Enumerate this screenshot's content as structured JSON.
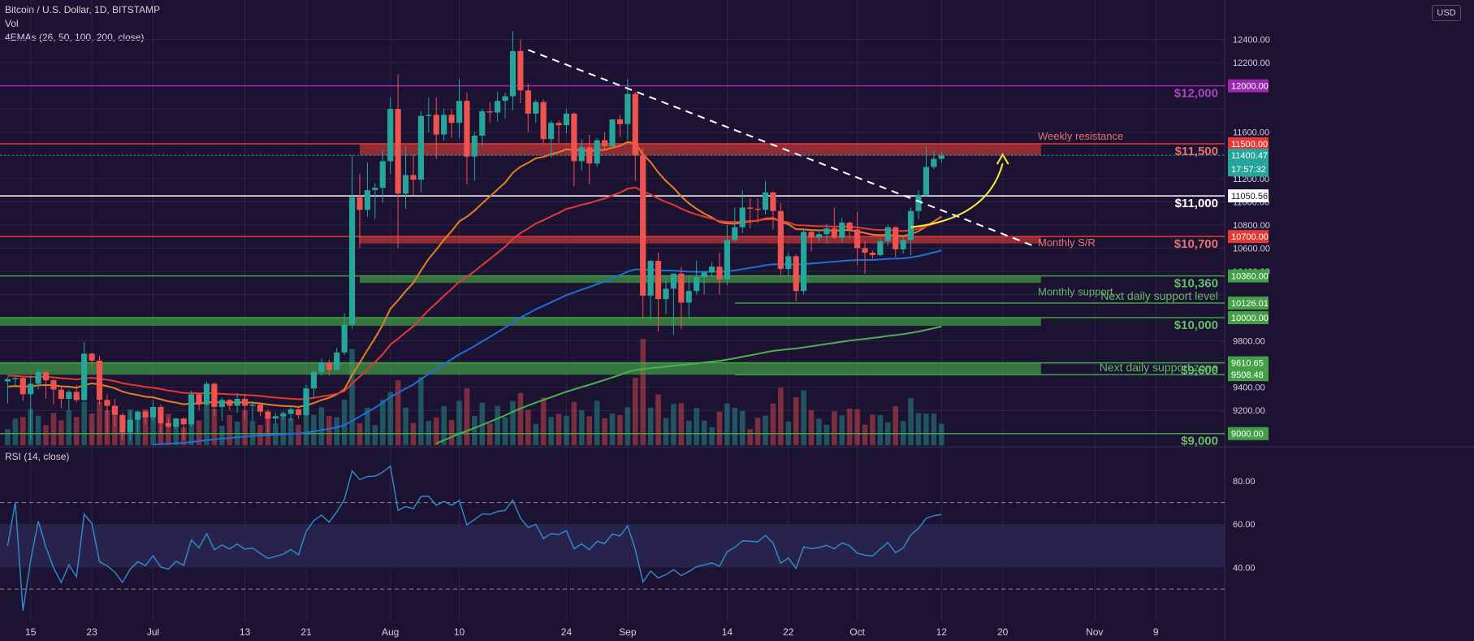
{
  "header": {
    "symbol_line": "Bitcoin / U.S. Dollar, 1D, BITSTAMP",
    "volume_label": "Vol",
    "ema_label": "4EMAs (26, 50, 100, 200, close)",
    "rsi_label": "RSI (14, close)",
    "currency_button": "USD"
  },
  "colors": {
    "background": "#1c1231",
    "grid": "#2e2446",
    "up": "#26a69a",
    "down": "#ef5350",
    "resistance_zone": "#c0393b",
    "support_zone": "#43a047",
    "level_12000": "#9c27b0",
    "ema26": "#e67e22",
    "ema50": "#e53935",
    "ema100": "#1e6fd9",
    "ema200": "#4caf50",
    "rsi": "#2f89c5"
  },
  "chart_data": {
    "type": "candlestick",
    "title": "Bitcoin / U.S. Dollar, 1D, BITSTAMP",
    "y_axis": {
      "min": 8900,
      "max": 12600,
      "ticks": [
        "12400.00",
        "12200.00",
        "11600.00",
        "11200.00",
        "11000.00",
        "10800.00",
        "10600.00",
        "10400.00",
        "9800.00",
        "9400.00",
        "9200.00"
      ]
    },
    "x_axis": {
      "labels": [
        "15",
        "23",
        "Jul",
        "13",
        "21",
        "Aug",
        "10",
        "24",
        "Sep",
        "14",
        "22",
        "Oct",
        "12",
        "20",
        "Nov",
        "9"
      ],
      "dates": [
        "2020-06-15",
        "2020-06-23",
        "2020-07-01",
        "2020-07-13",
        "2020-07-21",
        "2020-08-01",
        "2020-08-10",
        "2020-08-24",
        "2020-09-01",
        "2020-09-14",
        "2020-09-22",
        "2020-10-01",
        "2020-10-12",
        "2020-10-20",
        "2020-11-01",
        "2020-11-09"
      ]
    },
    "candles": [
      {
        "date": "2020-06-12",
        "o": 9450,
        "h": 9490,
        "l": 9260,
        "c": 9470
      },
      {
        "date": "2020-06-13",
        "o": 9470,
        "h": 9500,
        "l": 9400,
        "c": 9480
      },
      {
        "date": "2020-06-14",
        "o": 9480,
        "h": 9490,
        "l": 9280,
        "c": 9340
      },
      {
        "date": "2020-06-15",
        "o": 9340,
        "h": 9500,
        "l": 8950,
        "c": 9430
      },
      {
        "date": "2020-06-16",
        "o": 9430,
        "h": 9560,
        "l": 9380,
        "c": 9530
      },
      {
        "date": "2020-06-17",
        "o": 9530,
        "h": 9550,
        "l": 9300,
        "c": 9460
      },
      {
        "date": "2020-06-18",
        "o": 9460,
        "h": 9470,
        "l": 9250,
        "c": 9380
      },
      {
        "date": "2020-06-19",
        "o": 9380,
        "h": 9400,
        "l": 9220,
        "c": 9300
      },
      {
        "date": "2020-06-20",
        "o": 9300,
        "h": 9380,
        "l": 9200,
        "c": 9360
      },
      {
        "date": "2020-06-21",
        "o": 9360,
        "h": 9420,
        "l": 9270,
        "c": 9290
      },
      {
        "date": "2020-06-22",
        "o": 9290,
        "h": 9790,
        "l": 9280,
        "c": 9690
      },
      {
        "date": "2020-06-23",
        "o": 9690,
        "h": 9700,
        "l": 9570,
        "c": 9630
      },
      {
        "date": "2020-06-24",
        "o": 9630,
        "h": 9670,
        "l": 9250,
        "c": 9290
      },
      {
        "date": "2020-06-25",
        "o": 9290,
        "h": 9340,
        "l": 9000,
        "c": 9240
      },
      {
        "date": "2020-06-26",
        "o": 9240,
        "h": 9300,
        "l": 9050,
        "c": 9160
      },
      {
        "date": "2020-06-27",
        "o": 9160,
        "h": 9180,
        "l": 8950,
        "c": 9010
      },
      {
        "date": "2020-06-28",
        "o": 9010,
        "h": 9190,
        "l": 8940,
        "c": 9120
      },
      {
        "date": "2020-06-29",
        "o": 9120,
        "h": 9200,
        "l": 9000,
        "c": 9190
      },
      {
        "date": "2020-06-30",
        "o": 9190,
        "h": 9200,
        "l": 9080,
        "c": 9140
      },
      {
        "date": "2020-07-01",
        "o": 9140,
        "h": 9290,
        "l": 9110,
        "c": 9230
      },
      {
        "date": "2020-07-02",
        "o": 9230,
        "h": 9250,
        "l": 9000,
        "c": 9090
      },
      {
        "date": "2020-07-03",
        "o": 9090,
        "h": 9130,
        "l": 9050,
        "c": 9060
      },
      {
        "date": "2020-07-04",
        "o": 9060,
        "h": 9140,
        "l": 9040,
        "c": 9130
      },
      {
        "date": "2020-07-05",
        "o": 9130,
        "h": 9140,
        "l": 8950,
        "c": 9080
      },
      {
        "date": "2020-07-06",
        "o": 9080,
        "h": 9370,
        "l": 9060,
        "c": 9340
      },
      {
        "date": "2020-07-07",
        "o": 9340,
        "h": 9350,
        "l": 9200,
        "c": 9250
      },
      {
        "date": "2020-07-08",
        "o": 9250,
        "h": 9450,
        "l": 9240,
        "c": 9430
      },
      {
        "date": "2020-07-09",
        "o": 9430,
        "h": 9440,
        "l": 9150,
        "c": 9230
      },
      {
        "date": "2020-07-10",
        "o": 9230,
        "h": 9310,
        "l": 9110,
        "c": 9290
      },
      {
        "date": "2020-07-11",
        "o": 9290,
        "h": 9300,
        "l": 9200,
        "c": 9240
      },
      {
        "date": "2020-07-12",
        "o": 9240,
        "h": 9350,
        "l": 9180,
        "c": 9300
      },
      {
        "date": "2020-07-13",
        "o": 9300,
        "h": 9340,
        "l": 9130,
        "c": 9240
      },
      {
        "date": "2020-07-14",
        "o": 9240,
        "h": 9280,
        "l": 9110,
        "c": 9250
      },
      {
        "date": "2020-07-15",
        "o": 9250,
        "h": 9270,
        "l": 9150,
        "c": 9190
      },
      {
        "date": "2020-07-16",
        "o": 9190,
        "h": 9210,
        "l": 9000,
        "c": 9130
      },
      {
        "date": "2020-07-17",
        "o": 9130,
        "h": 9180,
        "l": 9080,
        "c": 9150
      },
      {
        "date": "2020-07-18",
        "o": 9150,
        "h": 9190,
        "l": 9120,
        "c": 9170
      },
      {
        "date": "2020-07-19",
        "o": 9170,
        "h": 9240,
        "l": 9110,
        "c": 9210
      },
      {
        "date": "2020-07-20",
        "o": 9210,
        "h": 9220,
        "l": 9130,
        "c": 9160
      },
      {
        "date": "2020-07-21",
        "o": 9160,
        "h": 9420,
        "l": 9150,
        "c": 9390
      },
      {
        "date": "2020-07-22",
        "o": 9390,
        "h": 9540,
        "l": 9300,
        "c": 9530
      },
      {
        "date": "2020-07-23",
        "o": 9530,
        "h": 9650,
        "l": 9500,
        "c": 9610
      },
      {
        "date": "2020-07-24",
        "o": 9610,
        "h": 9640,
        "l": 9500,
        "c": 9550
      },
      {
        "date": "2020-07-25",
        "o": 9550,
        "h": 9740,
        "l": 9540,
        "c": 9700
      },
      {
        "date": "2020-07-26",
        "o": 9700,
        "h": 10040,
        "l": 9680,
        "c": 9940
      },
      {
        "date": "2020-07-27",
        "o": 9940,
        "h": 11400,
        "l": 9900,
        "c": 11040
      },
      {
        "date": "2020-07-28",
        "o": 11040,
        "h": 11240,
        "l": 10600,
        "c": 10930
      },
      {
        "date": "2020-07-29",
        "o": 10930,
        "h": 11340,
        "l": 10870,
        "c": 11100
      },
      {
        "date": "2020-07-30",
        "o": 11100,
        "h": 11160,
        "l": 10850,
        "c": 11120
      },
      {
        "date": "2020-07-31",
        "o": 11120,
        "h": 11450,
        "l": 10990,
        "c": 11350
      },
      {
        "date": "2020-08-01",
        "o": 11350,
        "h": 11900,
        "l": 11240,
        "c": 11800
      },
      {
        "date": "2020-08-02",
        "o": 11800,
        "h": 12100,
        "l": 10600,
        "c": 11070
      },
      {
        "date": "2020-08-03",
        "o": 11070,
        "h": 11480,
        "l": 10940,
        "c": 11230
      },
      {
        "date": "2020-08-04",
        "o": 11230,
        "h": 11410,
        "l": 11060,
        "c": 11190
      },
      {
        "date": "2020-08-05",
        "o": 11190,
        "h": 11780,
        "l": 11080,
        "c": 11740
      },
      {
        "date": "2020-08-06",
        "o": 11740,
        "h": 11900,
        "l": 11600,
        "c": 11750
      },
      {
        "date": "2020-08-07",
        "o": 11750,
        "h": 11900,
        "l": 11370,
        "c": 11580
      },
      {
        "date": "2020-08-08",
        "o": 11580,
        "h": 11800,
        "l": 11530,
        "c": 11750
      },
      {
        "date": "2020-08-09",
        "o": 11750,
        "h": 11800,
        "l": 11550,
        "c": 11680
      },
      {
        "date": "2020-08-10",
        "o": 11680,
        "h": 12060,
        "l": 11550,
        "c": 11870
      },
      {
        "date": "2020-08-11",
        "o": 11870,
        "h": 11940,
        "l": 11150,
        "c": 11390
      },
      {
        "date": "2020-08-12",
        "o": 11390,
        "h": 11600,
        "l": 11180,
        "c": 11570
      },
      {
        "date": "2020-08-13",
        "o": 11570,
        "h": 11800,
        "l": 11480,
        "c": 11780
      },
      {
        "date": "2020-08-14",
        "o": 11780,
        "h": 11860,
        "l": 11680,
        "c": 11770
      },
      {
        "date": "2020-08-15",
        "o": 11770,
        "h": 11950,
        "l": 11690,
        "c": 11870
      },
      {
        "date": "2020-08-16",
        "o": 11870,
        "h": 11940,
        "l": 11720,
        "c": 11910
      },
      {
        "date": "2020-08-17",
        "o": 11910,
        "h": 12470,
        "l": 11790,
        "c": 12300
      },
      {
        "date": "2020-08-18",
        "o": 12300,
        "h": 12400,
        "l": 11850,
        "c": 11960
      },
      {
        "date": "2020-08-19",
        "o": 11960,
        "h": 12020,
        "l": 11600,
        "c": 11760
      },
      {
        "date": "2020-08-20",
        "o": 11760,
        "h": 11880,
        "l": 11680,
        "c": 11860
      },
      {
        "date": "2020-08-21",
        "o": 11860,
        "h": 11880,
        "l": 11500,
        "c": 11540
      },
      {
        "date": "2020-08-22",
        "o": 11540,
        "h": 11700,
        "l": 11380,
        "c": 11680
      },
      {
        "date": "2020-08-23",
        "o": 11680,
        "h": 11700,
        "l": 11510,
        "c": 11660
      },
      {
        "date": "2020-08-24",
        "o": 11660,
        "h": 11800,
        "l": 11590,
        "c": 11760
      },
      {
        "date": "2020-08-25",
        "o": 11760,
        "h": 11770,
        "l": 11130,
        "c": 11350
      },
      {
        "date": "2020-08-26",
        "o": 11350,
        "h": 11540,
        "l": 11270,
        "c": 11470
      },
      {
        "date": "2020-08-27",
        "o": 11470,
        "h": 11580,
        "l": 11150,
        "c": 11330
      },
      {
        "date": "2020-08-28",
        "o": 11330,
        "h": 11550,
        "l": 11300,
        "c": 11530
      },
      {
        "date": "2020-08-29",
        "o": 11530,
        "h": 11600,
        "l": 11450,
        "c": 11480
      },
      {
        "date": "2020-08-30",
        "o": 11480,
        "h": 11700,
        "l": 11470,
        "c": 11710
      },
      {
        "date": "2020-08-31",
        "o": 11710,
        "h": 11750,
        "l": 11560,
        "c": 11670
      },
      {
        "date": "2020-09-01",
        "o": 11670,
        "h": 12060,
        "l": 11530,
        "c": 11930
      },
      {
        "date": "2020-09-02",
        "o": 11930,
        "h": 11950,
        "l": 11180,
        "c": 11400
      },
      {
        "date": "2020-09-03",
        "o": 11400,
        "h": 11470,
        "l": 10000,
        "c": 10190
      },
      {
        "date": "2020-09-04",
        "o": 10190,
        "h": 10500,
        "l": 9980,
        "c": 10490
      },
      {
        "date": "2020-09-05",
        "o": 10490,
        "h": 10560,
        "l": 9880,
        "c": 10160
      },
      {
        "date": "2020-09-06",
        "o": 10160,
        "h": 10350,
        "l": 10030,
        "c": 10250
      },
      {
        "date": "2020-09-07",
        "o": 10250,
        "h": 10380,
        "l": 9850,
        "c": 10380
      },
      {
        "date": "2020-09-08",
        "o": 10380,
        "h": 10440,
        "l": 9900,
        "c": 10130
      },
      {
        "date": "2020-09-09",
        "o": 10130,
        "h": 10350,
        "l": 10010,
        "c": 10230
      },
      {
        "date": "2020-09-10",
        "o": 10230,
        "h": 10490,
        "l": 10200,
        "c": 10350
      },
      {
        "date": "2020-09-11",
        "o": 10350,
        "h": 10400,
        "l": 10200,
        "c": 10390
      },
      {
        "date": "2020-09-12",
        "o": 10390,
        "h": 10480,
        "l": 10350,
        "c": 10440
      },
      {
        "date": "2020-09-13",
        "o": 10440,
        "h": 10560,
        "l": 10200,
        "c": 10330
      },
      {
        "date": "2020-09-14",
        "o": 10330,
        "h": 10800,
        "l": 10280,
        "c": 10670
      },
      {
        "date": "2020-09-15",
        "o": 10670,
        "h": 10950,
        "l": 10660,
        "c": 10780
      },
      {
        "date": "2020-09-16",
        "o": 10780,
        "h": 11100,
        "l": 10730,
        "c": 10950
      },
      {
        "date": "2020-09-17",
        "o": 10950,
        "h": 11030,
        "l": 10770,
        "c": 10940
      },
      {
        "date": "2020-09-18",
        "o": 10940,
        "h": 11030,
        "l": 10820,
        "c": 10930
      },
      {
        "date": "2020-09-19",
        "o": 10930,
        "h": 11180,
        "l": 10890,
        "c": 11080
      },
      {
        "date": "2020-09-20",
        "o": 11080,
        "h": 11090,
        "l": 10760,
        "c": 10920
      },
      {
        "date": "2020-09-21",
        "o": 10920,
        "h": 10990,
        "l": 10370,
        "c": 10420
      },
      {
        "date": "2020-09-22",
        "o": 10420,
        "h": 10560,
        "l": 10360,
        "c": 10530
      },
      {
        "date": "2020-09-23",
        "o": 10530,
        "h": 10550,
        "l": 10140,
        "c": 10230
      },
      {
        "date": "2020-09-24",
        "o": 10230,
        "h": 10760,
        "l": 10200,
        "c": 10740
      },
      {
        "date": "2020-09-25",
        "o": 10740,
        "h": 10750,
        "l": 10570,
        "c": 10690
      },
      {
        "date": "2020-09-26",
        "o": 10690,
        "h": 10760,
        "l": 10660,
        "c": 10720
      },
      {
        "date": "2020-09-27",
        "o": 10720,
        "h": 10810,
        "l": 10640,
        "c": 10770
      },
      {
        "date": "2020-09-28",
        "o": 10770,
        "h": 10950,
        "l": 10680,
        "c": 10690
      },
      {
        "date": "2020-09-29",
        "o": 10690,
        "h": 10860,
        "l": 10650,
        "c": 10820
      },
      {
        "date": "2020-09-30",
        "o": 10820,
        "h": 10830,
        "l": 10680,
        "c": 10760
      },
      {
        "date": "2020-10-01",
        "o": 10760,
        "h": 10910,
        "l": 10450,
        "c": 10600
      },
      {
        "date": "2020-10-02",
        "o": 10600,
        "h": 10660,
        "l": 10380,
        "c": 10560
      },
      {
        "date": "2020-10-03",
        "o": 10560,
        "h": 10580,
        "l": 10510,
        "c": 10540
      },
      {
        "date": "2020-10-04",
        "o": 10540,
        "h": 10690,
        "l": 10530,
        "c": 10660
      },
      {
        "date": "2020-10-05",
        "o": 10660,
        "h": 10800,
        "l": 10620,
        "c": 10780
      },
      {
        "date": "2020-10-06",
        "o": 10780,
        "h": 10790,
        "l": 10520,
        "c": 10590
      },
      {
        "date": "2020-10-07",
        "o": 10590,
        "h": 10690,
        "l": 10550,
        "c": 10670
      },
      {
        "date": "2020-10-08",
        "o": 10670,
        "h": 10950,
        "l": 10540,
        "c": 10920
      },
      {
        "date": "2020-10-09",
        "o": 10920,
        "h": 11100,
        "l": 10850,
        "c": 11060
      },
      {
        "date": "2020-10-10",
        "o": 11060,
        "h": 11480,
        "l": 11050,
        "c": 11300
      },
      {
        "date": "2020-10-11",
        "o": 11300,
        "h": 11440,
        "l": 11280,
        "c": 11370
      },
      {
        "date": "2020-10-12",
        "o": 11370,
        "h": 11430,
        "l": 11340,
        "c": 11400
      }
    ],
    "volume_bars": "one per candle, colored by candle direction",
    "ema_series": [
      {
        "name": "EMA 26"
      },
      {
        "name": "EMA 50"
      },
      {
        "name": "EMA 100"
      },
      {
        "name": "EMA 200"
      }
    ],
    "rsi": {
      "levels": [
        "80.00",
        "60.00",
        "40.00"
      ],
      "overbought": 70,
      "oversold": 30,
      "last": 64
    },
    "zones": [
      {
        "label": "Weekly resistance",
        "from": 11400,
        "to": 11500,
        "color": "resistance"
      },
      {
        "label": "Monthly S/R",
        "from": 10640,
        "to": 10700,
        "color": "resistance"
      },
      {
        "label": "Monthly support",
        "from": 10300,
        "to": 10360,
        "color": "support"
      },
      {
        "label": "",
        "from": 9930,
        "to": 10000,
        "color": "support"
      },
      {
        "label": "",
        "from": 9508,
        "to": 9610,
        "color": "support"
      }
    ],
    "levels": [
      {
        "price": 12000,
        "label": "$12,000",
        "tag": "12000.00",
        "color": "#9c27b0"
      },
      {
        "price": 11500,
        "label": "$11,500",
        "tag": "11500.00",
        "color": "#e53935"
      },
      {
        "price": 11050.56,
        "label": "$11,000",
        "tag": "11050.56",
        "color": "#ffffff"
      },
      {
        "price": 10700,
        "label": "$10,700",
        "tag": "10700.00",
        "color": "#e53935"
      },
      {
        "price": 10360,
        "label": "$10,360",
        "tag": "10360.00",
        "color": "#43a047"
      },
      {
        "price": 10126.01,
        "label": "Next daily support level",
        "tag": "10126.01",
        "color": "#43a047"
      },
      {
        "price": 10000,
        "label": "$10,000",
        "tag": "10000.00",
        "color": "#43a047"
      },
      {
        "price": 9610.65,
        "label": "$9,600",
        "tag": "9610.65",
        "color": "#43a047"
      },
      {
        "price": 9508.48,
        "label": "Next daily support zone",
        "tag": "9508.48",
        "color": "#43a047"
      },
      {
        "price": 9000,
        "label": "$9,000",
        "tag": "9000.00",
        "color": "#43a047"
      }
    ],
    "last_price": {
      "value": "11400.47",
      "countdown": "17:57:32"
    }
  }
}
